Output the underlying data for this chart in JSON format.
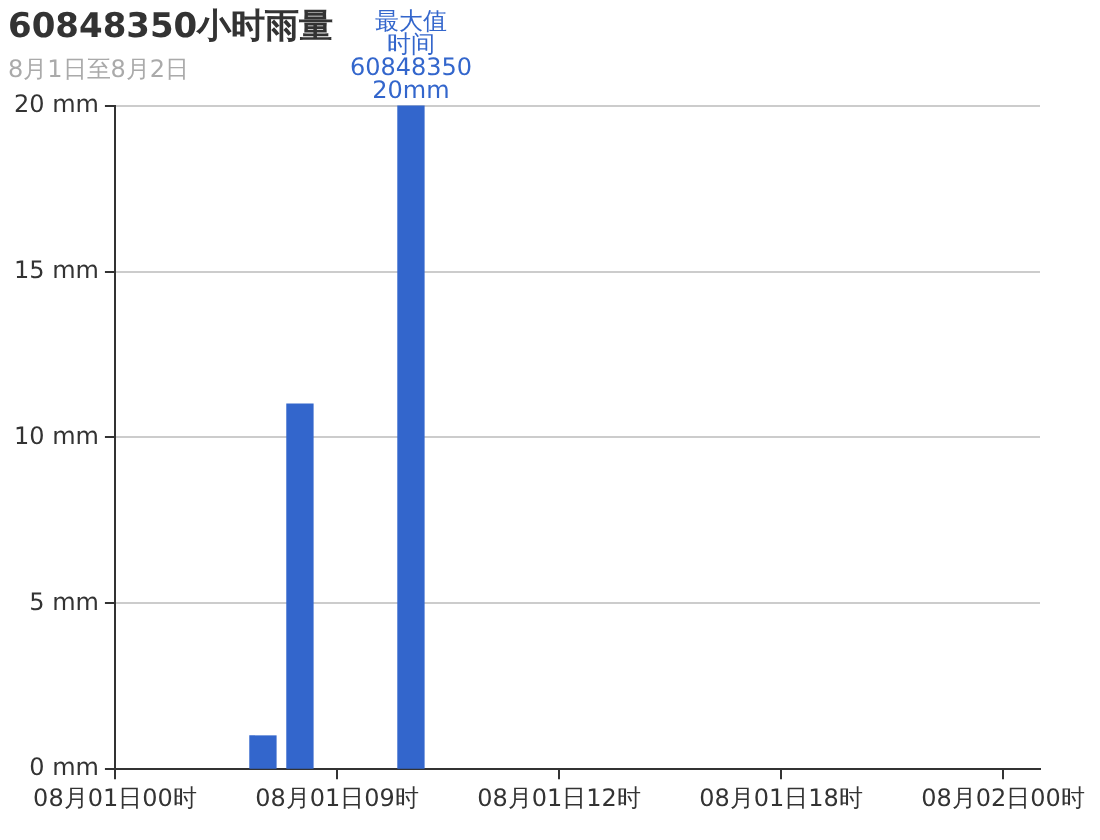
{
  "chart_data": {
    "type": "bar",
    "title": "60848350小时雨量",
    "subtitle": "8月1日至8月2日",
    "categories": [
      "08月01日00时",
      null,
      null,
      null,
      null,
      null,
      "08月01日09时",
      null,
      null,
      null,
      null,
      null,
      "08月01日12时",
      null,
      null,
      null,
      null,
      null,
      "08月01日18时",
      null,
      null,
      null,
      null,
      null,
      "08月02日00时",
      null
    ],
    "series": [
      {
        "color": "#3366cc",
        "values": [
          null,
          null,
          null,
          null,
          1,
          11,
          null,
          null,
          20,
          null,
          null,
          null,
          null,
          null,
          null,
          null,
          null,
          null,
          null,
          null,
          null,
          null,
          null,
          null,
          null,
          null
        ]
      }
    ],
    "ylim": [
      0,
      20
    ],
    "yticks": [
      {
        "value": 0,
        "label": "0 mm"
      },
      {
        "value": 5,
        "label": "5 mm"
      },
      {
        "value": 10,
        "label": "10 mm"
      },
      {
        "value": 15,
        "label": "15 mm"
      },
      {
        "value": 20,
        "label": "20 mm"
      }
    ],
    "grid": "y",
    "annotations": [
      "最大值",
      "时间",
      "60848350",
      "20mm"
    ]
  }
}
